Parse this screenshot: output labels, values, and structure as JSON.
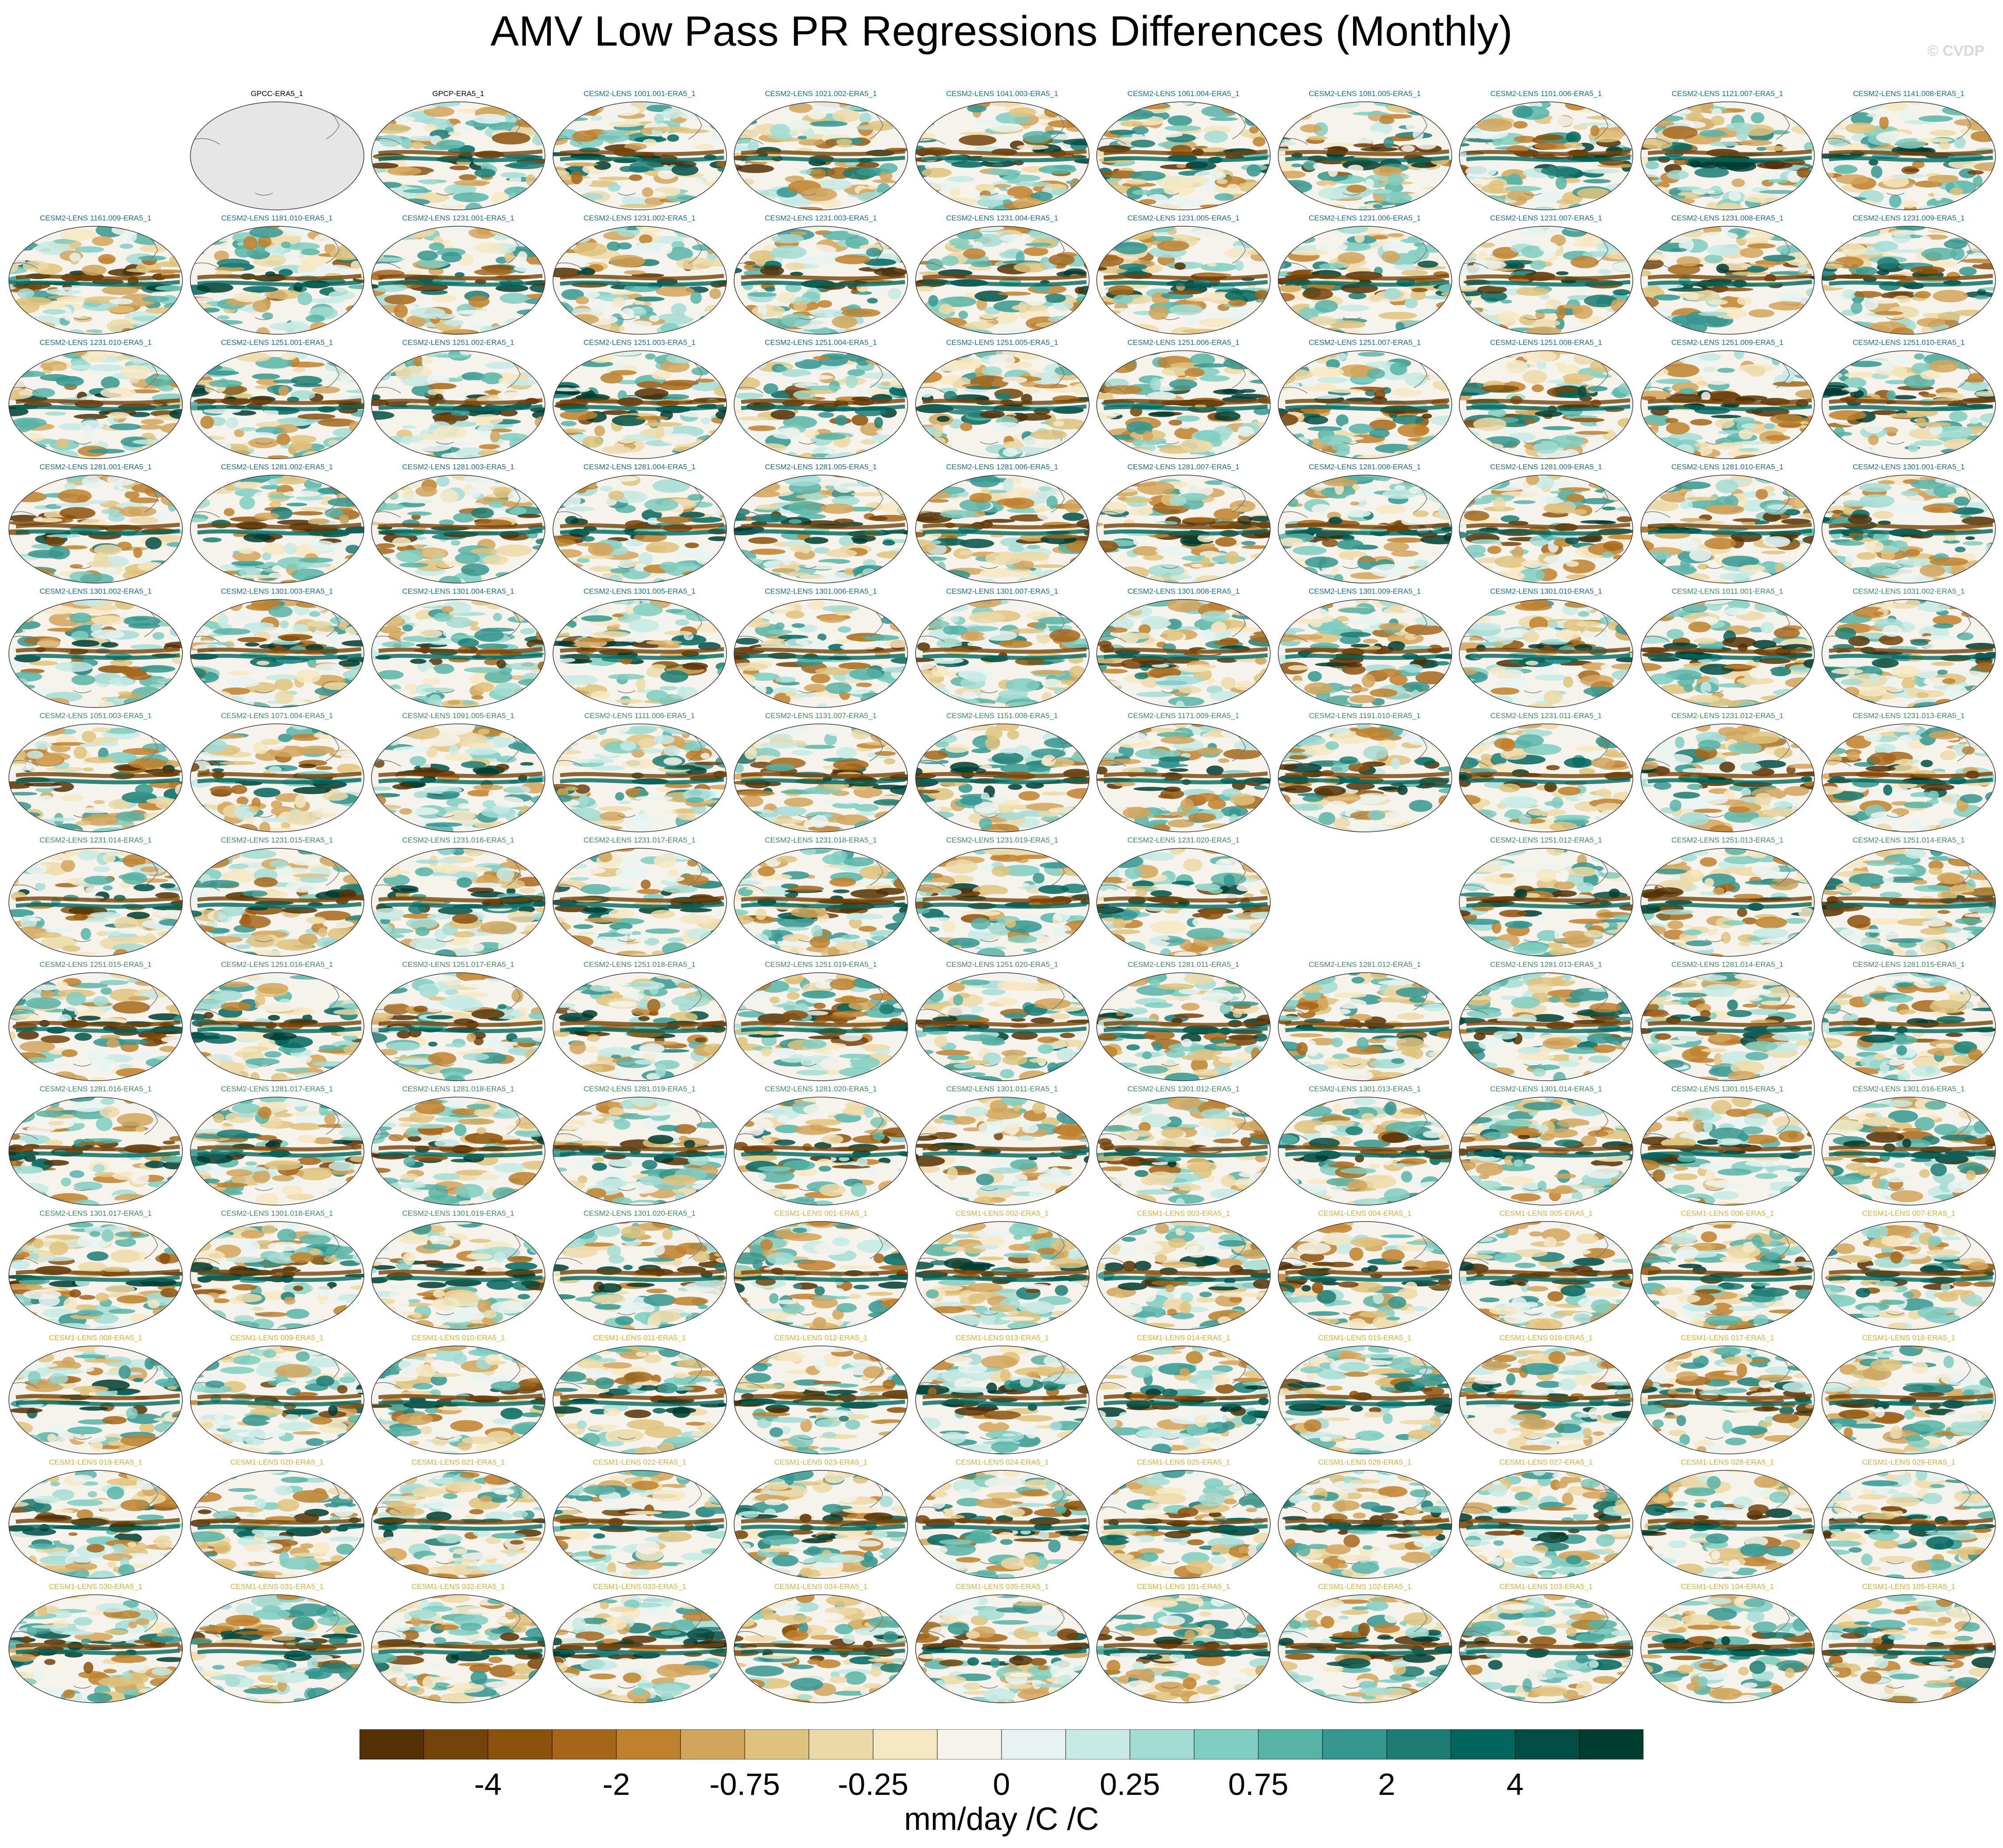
{
  "title": "AMV Low Pass PR Regressions Differences (Monthly)",
  "watermark": "© CVDP",
  "colorbar": {
    "units": "mm/day /C /C",
    "colors": [
      "#543005",
      "#74430a",
      "#8c510a",
      "#a6661a",
      "#bf812d",
      "#d2a55c",
      "#dfc27d",
      "#ecd9a8",
      "#f6e8c3",
      "#f5f3ec",
      "#e8f3f1",
      "#c7eae5",
      "#a3dcd3",
      "#80cdc1",
      "#58b3a7",
      "#35978f",
      "#1c7c73",
      "#01665e",
      "#024d45",
      "#003c30"
    ],
    "tick_labels": [
      "-4",
      "-2",
      "-0.75",
      "-0.25",
      "0",
      "0.25",
      "0.75",
      "2",
      "4"
    ]
  },
  "panel_title_colors": {
    "obs": "#000000",
    "cesm2_blue": "#1c6e8c",
    "cesm2_green": "#3d8c60",
    "cesm1": "#d8b23c"
  },
  "panels": [
    {
      "r": 0,
      "c": 1,
      "label": "GPCC-ERA5_1",
      "kind": "obs",
      "tone": "obs",
      "gray": true
    },
    {
      "r": 0,
      "c": 2,
      "label": "GPCP-ERA5_1",
      "kind": "obs",
      "tone": "obs"
    },
    {
      "r": 0,
      "c": 3,
      "label": "CESM2-LENS 1001.001-ERA5_1",
      "tone": "cesm2_blue"
    },
    {
      "r": 0,
      "c": 4,
      "label": "CESM2-LENS 1021.002-ERA5_1",
      "tone": "cesm2_blue"
    },
    {
      "r": 0,
      "c": 5,
      "label": "CESM2-LENS 1041.003-ERA5_1",
      "tone": "cesm2_blue"
    },
    {
      "r": 0,
      "c": 6,
      "label": "CESM2-LENS 1061.004-ERA5_1",
      "tone": "cesm2_blue"
    },
    {
      "r": 0,
      "c": 7,
      "label": "CESM2-LENS 1081.005-ERA5_1",
      "tone": "cesm2_blue"
    },
    {
      "r": 0,
      "c": 8,
      "label": "CESM2-LENS 1101.006-ERA5_1",
      "tone": "cesm2_blue"
    },
    {
      "r": 0,
      "c": 9,
      "label": "CESM2-LENS 1121.007-ERA5_1",
      "tone": "cesm2_blue"
    },
    {
      "r": 0,
      "c": 10,
      "label": "CESM2-LENS 1141.008-ERA5_1",
      "tone": "cesm2_blue"
    },
    {
      "r": 1,
      "c": 0,
      "label": "CESM2-LENS 1161.009-ERA5_1",
      "tone": "cesm2_blue"
    },
    {
      "r": 1,
      "c": 1,
      "label": "CESM2-LENS 1181.010-ERA5_1",
      "tone": "cesm2_blue"
    },
    {
      "r": 1,
      "c": 2,
      "label": "CESM2-LENS 1231.001-ERA5_1",
      "tone": "cesm2_blue"
    },
    {
      "r": 1,
      "c": 3,
      "label": "CESM2-LENS 1231.002-ERA5_1",
      "tone": "cesm2_blue"
    },
    {
      "r": 1,
      "c": 4,
      "label": "CESM2-LENS 1231.003-ERA5_1",
      "tone": "cesm2_blue"
    },
    {
      "r": 1,
      "c": 5,
      "label": "CESM2-LENS 1231.004-ERA5_1",
      "tone": "cesm2_blue"
    },
    {
      "r": 1,
      "c": 6,
      "label": "CESM2-LENS 1231.005-ERA5_1",
      "tone": "cesm2_blue"
    },
    {
      "r": 1,
      "c": 7,
      "label": "CESM2-LENS 1231.006-ERA5_1",
      "tone": "cesm2_blue"
    },
    {
      "r": 1,
      "c": 8,
      "label": "CESM2-LENS 1231.007-ERA5_1",
      "tone": "cesm2_blue"
    },
    {
      "r": 1,
      "c": 9,
      "label": "CESM2-LENS 1231.008-ERA5_1",
      "tone": "cesm2_blue"
    },
    {
      "r": 1,
      "c": 10,
      "label": "CESM2-LENS 1231.009-ERA5_1",
      "tone": "cesm2_blue"
    },
    {
      "r": 2,
      "c": 0,
      "label": "CESM2-LENS 1231.010-ERA5_1",
      "tone": "cesm2_blue"
    },
    {
      "r": 2,
      "c": 1,
      "label": "CESM2-LENS 1251.001-ERA5_1",
      "tone": "cesm2_blue"
    },
    {
      "r": 2,
      "c": 2,
      "label": "CESM2-LENS 1251.002-ERA5_1",
      "tone": "cesm2_blue"
    },
    {
      "r": 2,
      "c": 3,
      "label": "CESM2-LENS 1251.003-ERA5_1",
      "tone": "cesm2_blue"
    },
    {
      "r": 2,
      "c": 4,
      "label": "CESM2-LENS 1251.004-ERA5_1",
      "tone": "cesm2_blue"
    },
    {
      "r": 2,
      "c": 5,
      "label": "CESM2-LENS 1251.005-ERA5_1",
      "tone": "cesm2_blue"
    },
    {
      "r": 2,
      "c": 6,
      "label": "CESM2-LENS 1251.006-ERA5_1",
      "tone": "cesm2_blue"
    },
    {
      "r": 2,
      "c": 7,
      "label": "CESM2-LENS 1251.007-ERA5_1",
      "tone": "cesm2_blue"
    },
    {
      "r": 2,
      "c": 8,
      "label": "CESM2-LENS 1251.008-ERA5_1",
      "tone": "cesm2_blue"
    },
    {
      "r": 2,
      "c": 9,
      "label": "CESM2-LENS 1251.009-ERA5_1",
      "tone": "cesm2_blue"
    },
    {
      "r": 2,
      "c": 10,
      "label": "CESM2-LENS 1251.010-ERA5_1",
      "tone": "cesm2_blue"
    },
    {
      "r": 3,
      "c": 0,
      "label": "CESM2-LENS 1281.001-ERA5_1",
      "tone": "cesm2_blue"
    },
    {
      "r": 3,
      "c": 1,
      "label": "CESM2-LENS 1281.002-ERA5_1",
      "tone": "cesm2_blue"
    },
    {
      "r": 3,
      "c": 2,
      "label": "CESM2-LENS 1281.003-ERA5_1",
      "tone": "cesm2_blue"
    },
    {
      "r": 3,
      "c": 3,
      "label": "CESM2-LENS 1281.004-ERA5_1",
      "tone": "cesm2_blue"
    },
    {
      "r": 3,
      "c": 4,
      "label": "CESM2-LENS 1281.005-ERA5_1",
      "tone": "cesm2_blue"
    },
    {
      "r": 3,
      "c": 5,
      "label": "CESM2-LENS 1281.006-ERA5_1",
      "tone": "cesm2_blue"
    },
    {
      "r": 3,
      "c": 6,
      "label": "CESM2-LENS 1281.007-ERA5_1",
      "tone": "cesm2_blue"
    },
    {
      "r": 3,
      "c": 7,
      "label": "CESM2-LENS 1281.008-ERA5_1",
      "tone": "cesm2_blue"
    },
    {
      "r": 3,
      "c": 8,
      "label": "CESM2-LENS 1281.009-ERA5_1",
      "tone": "cesm2_blue"
    },
    {
      "r": 3,
      "c": 9,
      "label": "CESM2-LENS 1281.010-ERA5_1",
      "tone": "cesm2_blue"
    },
    {
      "r": 3,
      "c": 10,
      "label": "CESM2-LENS 1301.001-ERA5_1",
      "tone": "cesm2_blue"
    },
    {
      "r": 4,
      "c": 0,
      "label": "CESM2-LENS 1301.002-ERA5_1",
      "tone": "cesm2_blue"
    },
    {
      "r": 4,
      "c": 1,
      "label": "CESM2-LENS 1301.003-ERA5_1",
      "tone": "cesm2_blue"
    },
    {
      "r": 4,
      "c": 2,
      "label": "CESM2-LENS 1301.004-ERA5_1",
      "tone": "cesm2_blue"
    },
    {
      "r": 4,
      "c": 3,
      "label": "CESM2-LENS 1301.005-ERA5_1",
      "tone": "cesm2_blue"
    },
    {
      "r": 4,
      "c": 4,
      "label": "CESM2-LENS 1301.006-ERA5_1",
      "tone": "cesm2_blue"
    },
    {
      "r": 4,
      "c": 5,
      "label": "CESM2-LENS 1301.007-ERA5_1",
      "tone": "cesm2_blue"
    },
    {
      "r": 4,
      "c": 6,
      "label": "CESM2-LENS 1301.008-ERA5_1",
      "tone": "cesm2_blue"
    },
    {
      "r": 4,
      "c": 7,
      "label": "CESM2-LENS 1301.009-ERA5_1",
      "tone": "cesm2_blue"
    },
    {
      "r": 4,
      "c": 8,
      "label": "CESM2-LENS 1301.010-ERA5_1",
      "tone": "cesm2_blue"
    },
    {
      "r": 4,
      "c": 9,
      "label": "CESM2-LENS 1011.001-ERA5_1",
      "tone": "cesm2_green"
    },
    {
      "r": 4,
      "c": 10,
      "label": "CESM2-LENS 1031.002-ERA5_1",
      "tone": "cesm2_green"
    },
    {
      "r": 5,
      "c": 0,
      "label": "CESM2-LENS 1051.003-ERA5_1",
      "tone": "cesm2_green"
    },
    {
      "r": 5,
      "c": 1,
      "label": "CESM2-LENS 1071.004-ERA5_1",
      "tone": "cesm2_green"
    },
    {
      "r": 5,
      "c": 2,
      "label": "CESM2-LENS 1091.005-ERA5_1",
      "tone": "cesm2_green"
    },
    {
      "r": 5,
      "c": 3,
      "label": "CESM2-LENS 1111.006-ERA5_1",
      "tone": "cesm2_green"
    },
    {
      "r": 5,
      "c": 4,
      "label": "CESM2-LENS 1131.007-ERA5_1",
      "tone": "cesm2_green"
    },
    {
      "r": 5,
      "c": 5,
      "label": "CESM2-LENS 1151.008-ERA5_1",
      "tone": "cesm2_green"
    },
    {
      "r": 5,
      "c": 6,
      "label": "CESM2-LENS 1171.009-ERA5_1",
      "tone": "cesm2_green"
    },
    {
      "r": 5,
      "c": 7,
      "label": "CESM2-LENS 1191.010-ERA5_1",
      "tone": "cesm2_green"
    },
    {
      "r": 5,
      "c": 8,
      "label": "CESM2-LENS 1231.011-ERA5_1",
      "tone": "cesm2_green"
    },
    {
      "r": 5,
      "c": 9,
      "label": "CESM2-LENS 1231.012-ERA5_1",
      "tone": "cesm2_green"
    },
    {
      "r": 5,
      "c": 10,
      "label": "CESM2-LENS 1231.013-ERA5_1",
      "tone": "cesm2_green"
    },
    {
      "r": 6,
      "c": 0,
      "label": "CESM2-LENS 1231.014-ERA5_1",
      "tone": "cesm2_green"
    },
    {
      "r": 6,
      "c": 1,
      "label": "CESM2-LENS 1231.015-ERA5_1",
      "tone": "cesm2_green"
    },
    {
      "r": 6,
      "c": 2,
      "label": "CESM2-LENS 1231.016-ERA5_1",
      "tone": "cesm2_green"
    },
    {
      "r": 6,
      "c": 3,
      "label": "CESM2-LENS 1231.017-ERA5_1",
      "tone": "cesm2_green"
    },
    {
      "r": 6,
      "c": 4,
      "label": "CESM2-LENS 1231.018-ERA5_1",
      "tone": "cesm2_green"
    },
    {
      "r": 6,
      "c": 5,
      "label": "CESM2-LENS 1231.019-ERA5_1",
      "tone": "cesm2_green"
    },
    {
      "r": 6,
      "c": 6,
      "label": "CESM2-LENS 1231.020-ERA5_1",
      "tone": "cesm2_green"
    },
    {
      "r": 6,
      "c": 8,
      "label": "CESM2-LENS 1251.012-ERA5_1",
      "tone": "cesm2_green"
    },
    {
      "r": 6,
      "c": 9,
      "label": "CESM2-LENS 1251.013-ERA5_1",
      "tone": "cesm2_green"
    },
    {
      "r": 6,
      "c": 10,
      "label": "CESM2-LENS 1251.014-ERA5_1",
      "tone": "cesm2_green"
    },
    {
      "r": 7,
      "c": 0,
      "label": "CESM2-LENS 1251.015-ERA5_1",
      "tone": "cesm2_green"
    },
    {
      "r": 7,
      "c": 1,
      "label": "CESM2-LENS 1251.016-ERA5_1",
      "tone": "cesm2_green"
    },
    {
      "r": 7,
      "c": 2,
      "label": "CESM2-LENS 1251.017-ERA5_1",
      "tone": "cesm2_green"
    },
    {
      "r": 7,
      "c": 3,
      "label": "CESM2-LENS 1251.018-ERA5_1",
      "tone": "cesm2_green"
    },
    {
      "r": 7,
      "c": 4,
      "label": "CESM2-LENS 1251.019-ERA5_1",
      "tone": "cesm2_green"
    },
    {
      "r": 7,
      "c": 5,
      "label": "CESM2-LENS 1251.020-ERA5_1",
      "tone": "cesm2_green"
    },
    {
      "r": 7,
      "c": 6,
      "label": "CESM2-LENS 1281.011-ERA5_1",
      "tone": "cesm2_green"
    },
    {
      "r": 7,
      "c": 7,
      "label": "CESM2-LENS 1281.012-ERA5_1",
      "tone": "cesm2_green"
    },
    {
      "r": 7,
      "c": 8,
      "label": "CESM2-LENS 1281.013-ERA5_1",
      "tone": "cesm2_green"
    },
    {
      "r": 7,
      "c": 9,
      "label": "CESM2-LENS 1281.014-ERA5_1",
      "tone": "cesm2_green"
    },
    {
      "r": 7,
      "c": 10,
      "label": "CESM2-LENS 1281.015-ERA5_1",
      "tone": "cesm2_green"
    },
    {
      "r": 8,
      "c": 0,
      "label": "CESM2-LENS 1281.016-ERA5_1",
      "tone": "cesm2_green"
    },
    {
      "r": 8,
      "c": 1,
      "label": "CESM2-LENS 1281.017-ERA5_1",
      "tone": "cesm2_green"
    },
    {
      "r": 8,
      "c": 2,
      "label": "CESM2-LENS 1281.018-ERA5_1",
      "tone": "cesm2_green"
    },
    {
      "r": 8,
      "c": 3,
      "label": "CESM2-LENS 1281.019-ERA5_1",
      "tone": "cesm2_green"
    },
    {
      "r": 8,
      "c": 4,
      "label": "CESM2-LENS 1281.020-ERA5_1",
      "tone": "cesm2_green"
    },
    {
      "r": 8,
      "c": 5,
      "label": "CESM2-LENS 1301.011-ERA5_1",
      "tone": "cesm2_green"
    },
    {
      "r": 8,
      "c": 6,
      "label": "CESM2-LENS 1301.012-ERA5_1",
      "tone": "cesm2_green"
    },
    {
      "r": 8,
      "c": 7,
      "label": "CESM2-LENS 1301.013-ERA5_1",
      "tone": "cesm2_green"
    },
    {
      "r": 8,
      "c": 8,
      "label": "CESM2-LENS 1301.014-ERA5_1",
      "tone": "cesm2_green"
    },
    {
      "r": 8,
      "c": 9,
      "label": "CESM2-LENS 1301.015-ERA5_1",
      "tone": "cesm2_green"
    },
    {
      "r": 8,
      "c": 10,
      "label": "CESM2-LENS 1301.016-ERA5_1",
      "tone": "cesm2_green"
    },
    {
      "r": 9,
      "c": 0,
      "label": "CESM2-LENS 1301.017-ERA5_1",
      "tone": "cesm2_green"
    },
    {
      "r": 9,
      "c": 1,
      "label": "CESM2-LENS 1301.018-ERA5_1",
      "tone": "cesm2_green"
    },
    {
      "r": 9,
      "c": 2,
      "label": "CESM2-LENS 1301.019-ERA5_1",
      "tone": "cesm2_green"
    },
    {
      "r": 9,
      "c": 3,
      "label": "CESM2-LENS 1301.020-ERA5_1",
      "tone": "cesm2_green"
    },
    {
      "r": 9,
      "c": 4,
      "label": "CESM1-LENS 001-ERA5_1",
      "tone": "cesm1"
    },
    {
      "r": 9,
      "c": 5,
      "label": "CESM1-LENS 002-ERA5_1",
      "tone": "cesm1"
    },
    {
      "r": 9,
      "c": 6,
      "label": "CESM1-LENS 003-ERA5_1",
      "tone": "cesm1"
    },
    {
      "r": 9,
      "c": 7,
      "label": "CESM1-LENS 004-ERA5_1",
      "tone": "cesm1"
    },
    {
      "r": 9,
      "c": 8,
      "label": "CESM1-LENS 005-ERA5_1",
      "tone": "cesm1"
    },
    {
      "r": 9,
      "c": 9,
      "label": "CESM1-LENS 006-ERA5_1",
      "tone": "cesm1"
    },
    {
      "r": 9,
      "c": 10,
      "label": "CESM1-LENS 007-ERA5_1",
      "tone": "cesm1"
    },
    {
      "r": 10,
      "c": 0,
      "label": "CESM1-LENS 008-ERA5_1",
      "tone": "cesm1"
    },
    {
      "r": 10,
      "c": 1,
      "label": "CESM1-LENS 009-ERA5_1",
      "tone": "cesm1"
    },
    {
      "r": 10,
      "c": 2,
      "label": "CESM1-LENS 010-ERA5_1",
      "tone": "cesm1"
    },
    {
      "r": 10,
      "c": 3,
      "label": "CESM1-LENS 011-ERA5_1",
      "tone": "cesm1"
    },
    {
      "r": 10,
      "c": 4,
      "label": "CESM1-LENS 012-ERA5_1",
      "tone": "cesm1"
    },
    {
      "r": 10,
      "c": 5,
      "label": "CESM1-LENS 013-ERA5_1",
      "tone": "cesm1"
    },
    {
      "r": 10,
      "c": 6,
      "label": "CESM1-LENS 014-ERA5_1",
      "tone": "cesm1"
    },
    {
      "r": 10,
      "c": 7,
      "label": "CESM1-LENS 015-ERA5_1",
      "tone": "cesm1"
    },
    {
      "r": 10,
      "c": 8,
      "label": "CESM1-LENS 016-ERA5_1",
      "tone": "cesm1"
    },
    {
      "r": 10,
      "c": 9,
      "label": "CESM1-LENS 017-ERA5_1",
      "tone": "cesm1"
    },
    {
      "r": 10,
      "c": 10,
      "label": "CESM1-LENS 018-ERA5_1",
      "tone": "cesm1"
    },
    {
      "r": 11,
      "c": 0,
      "label": "CESM1-LENS 019-ERA5_1",
      "tone": "cesm1"
    },
    {
      "r": 11,
      "c": 1,
      "label": "CESM1-LENS 020-ERA5_1",
      "tone": "cesm1"
    },
    {
      "r": 11,
      "c": 2,
      "label": "CESM1-LENS 021-ERA5_1",
      "tone": "cesm1"
    },
    {
      "r": 11,
      "c": 3,
      "label": "CESM1-LENS 022-ERA5_1",
      "tone": "cesm1"
    },
    {
      "r": 11,
      "c": 4,
      "label": "CESM1-LENS 023-ERA5_1",
      "tone": "cesm1"
    },
    {
      "r": 11,
      "c": 5,
      "label": "CESM1-LENS 024-ERA5_1",
      "tone": "cesm1"
    },
    {
      "r": 11,
      "c": 6,
      "label": "CESM1-LENS 025-ERA5_1",
      "tone": "cesm1"
    },
    {
      "r": 11,
      "c": 7,
      "label": "CESM1-LENS 026-ERA5_1",
      "tone": "cesm1"
    },
    {
      "r": 11,
      "c": 8,
      "label": "CESM1-LENS 027-ERA5_1",
      "tone": "cesm1"
    },
    {
      "r": 11,
      "c": 9,
      "label": "CESM1-LENS 028-ERA5_1",
      "tone": "cesm1"
    },
    {
      "r": 11,
      "c": 10,
      "label": "CESM1-LENS 029-ERA5_1",
      "tone": "cesm1"
    },
    {
      "r": 12,
      "c": 0,
      "label": "CESM1-LENS 030-ERA5_1",
      "tone": "cesm1"
    },
    {
      "r": 12,
      "c": 1,
      "label": "CESM1-LENS 031-ERA5_1",
      "tone": "cesm1"
    },
    {
      "r": 12,
      "c": 2,
      "label": "CESM1-LENS 032-ERA5_1",
      "tone": "cesm1"
    },
    {
      "r": 12,
      "c": 3,
      "label": "CESM1-LENS 033-ERA5_1",
      "tone": "cesm1"
    },
    {
      "r": 12,
      "c": 4,
      "label": "CESM1-LENS 034-ERA5_1",
      "tone": "cesm1"
    },
    {
      "r": 12,
      "c": 5,
      "label": "CESM1-LENS 035-ERA5_1",
      "tone": "cesm1"
    },
    {
      "r": 12,
      "c": 6,
      "label": "CESM1-LENS 101-ERA5_1",
      "tone": "cesm1"
    },
    {
      "r": 12,
      "c": 7,
      "label": "CESM1-LENS 102-ERA5_1",
      "tone": "cesm1"
    },
    {
      "r": 12,
      "c": 8,
      "label": "CESM1-LENS 103-ERA5_1",
      "tone": "cesm1"
    },
    {
      "r": 12,
      "c": 9,
      "label": "CESM1-LENS 104-ERA5_1",
      "tone": "cesm1"
    },
    {
      "r": 12,
      "c": 10,
      "label": "CESM1-LENS 105-ERA5_1",
      "tone": "cesm1"
    }
  ]
}
